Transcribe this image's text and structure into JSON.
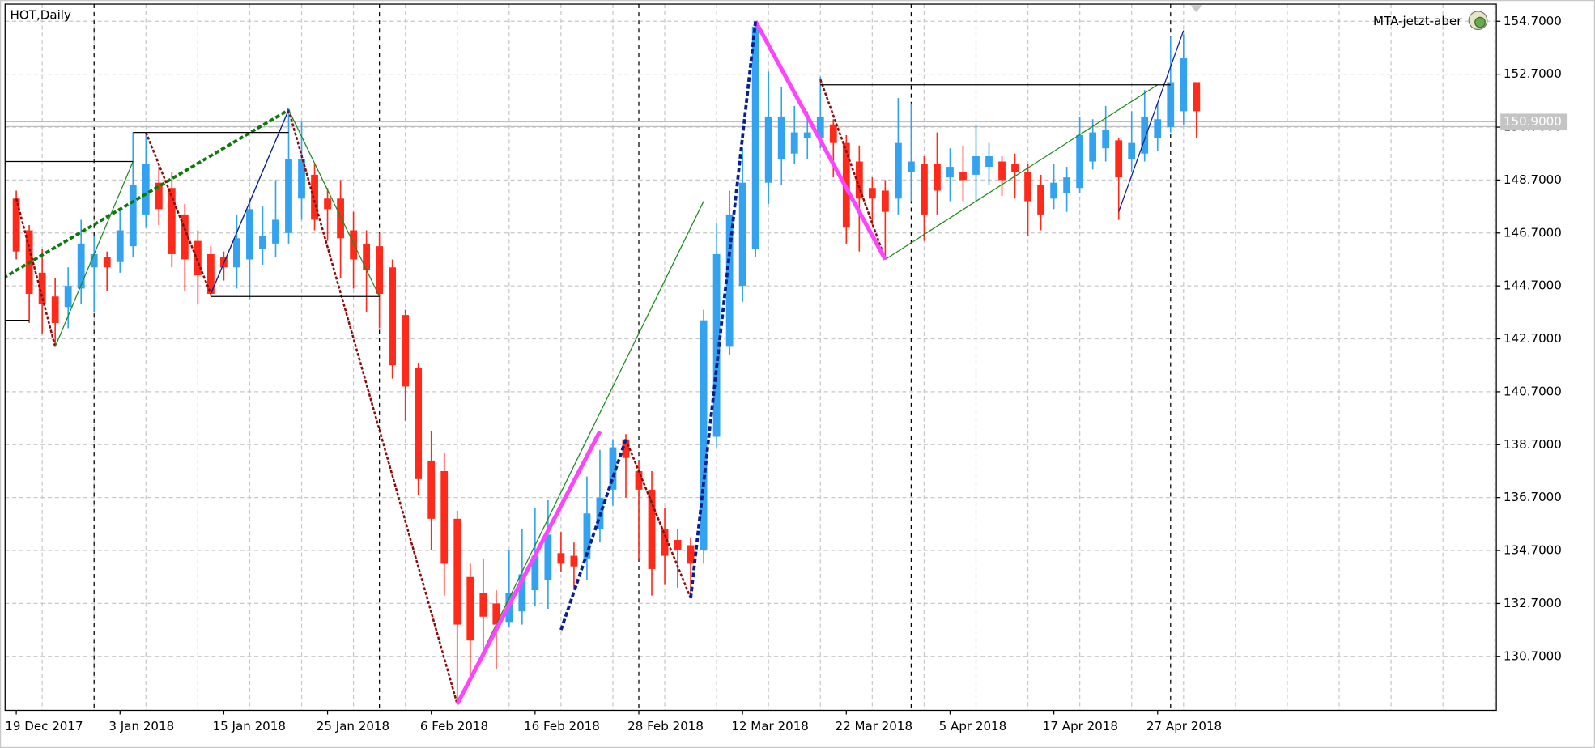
{
  "chart_data": {
    "type": "candlestick",
    "title": "HOT,Daily",
    "indicator_label": "MTA-jetzt-aber",
    "categories": [
      "19 Dec 2017",
      null,
      null,
      null,
      null,
      null,
      null,
      null,
      "3 Jan 2018",
      null,
      null,
      null,
      null,
      null,
      null,
      null,
      "15 Jan 2018",
      null,
      null,
      null,
      null,
      null,
      null,
      null,
      "25 Jan 2018",
      null,
      null,
      null,
      null,
      null,
      null,
      null,
      "6 Feb 2018",
      null,
      null,
      null,
      null,
      null,
      null,
      null,
      "16 Feb 2018",
      null,
      null,
      null,
      null,
      null,
      null,
      null,
      "28 Feb 2018",
      null,
      null,
      null,
      null,
      null,
      null,
      null,
      "12 Mar 2018",
      null,
      null,
      null,
      null,
      null,
      null,
      null,
      "22 Mar 2018",
      null,
      null,
      null,
      null,
      null,
      null,
      null,
      "5 Apr 2018",
      null,
      null,
      null,
      null,
      null,
      null,
      null,
      "17 Apr 2018",
      null,
      null,
      null,
      null,
      null,
      null,
      null,
      "27 Apr 2018",
      null,
      null,
      null
    ],
    "open": [
      148.0,
      146.8,
      145.2,
      144.3,
      143.9,
      144.6,
      145.4,
      145.8,
      145.6,
      146.2,
      147.4,
      148.6,
      148.4,
      147.4,
      146.4,
      145.9,
      145.8,
      145.4,
      145.7,
      146.1,
      146.3,
      146.7,
      148.0,
      148.9,
      148.0,
      148.0,
      146.8,
      146.3,
      146.2,
      145.4,
      143.6,
      141.6,
      138.1,
      137.7,
      135.9,
      133.7,
      133.1,
      132.7,
      132.0,
      132.4,
      133.2,
      133.6,
      134.6,
      134.5,
      134.4,
      135.5,
      137.0,
      138.9,
      137.7,
      137.0,
      135.5,
      135.1,
      134.9,
      134.7,
      139.0,
      142.4,
      144.7,
      146.1,
      148.6,
      149.5,
      149.7,
      150.3,
      150.3,
      150.8,
      150.1,
      149.4,
      148.4,
      148.3,
      148.0,
      149.0,
      149.3,
      149.3,
      148.8,
      149.0,
      148.9,
      149.2,
      149.4,
      149.3,
      149.0,
      148.5,
      148.0,
      148.2,
      148.4,
      149.4,
      149.9,
      150.2,
      149.5,
      149.7,
      150.3,
      150.7,
      151.3,
      152.4
    ],
    "high": [
      148.3,
      147.0,
      146.1,
      145.0,
      145.4,
      147.2,
      146.6,
      146.0,
      147.6,
      150.5,
      150.5,
      149.2,
      149.0,
      147.8,
      146.8,
      146.2,
      146.0,
      147.4,
      148.0,
      147.7,
      148.7,
      151.4,
      150.9,
      149.3,
      148.4,
      148.7,
      147.5,
      146.8,
      146.7,
      145.7,
      143.8,
      141.8,
      139.2,
      138.4,
      136.2,
      134.2,
      134.4,
      133.2,
      134.7,
      135.5,
      136.3,
      136.6,
      135.4,
      135.0,
      137.5,
      138.5,
      138.9,
      139.1,
      138.1,
      137.7,
      136.3,
      135.5,
      135.2,
      143.8,
      147.1,
      148.3,
      149.9,
      154.7,
      152.8,
      152.2,
      151.5,
      151.3,
      152.6,
      151.0,
      150.4,
      150.0,
      148.8,
      148.7,
      151.8,
      151.6,
      149.6,
      150.5,
      149.9,
      150.0,
      150.8,
      150.1,
      149.6,
      149.7,
      149.3,
      148.9,
      149.3,
      149.2,
      151.1,
      151.0,
      151.5,
      150.3,
      151.3,
      152.1,
      151.6,
      154.1,
      154.2,
      152.4
    ],
    "low": [
      145.7,
      143.3,
      142.9,
      142.4,
      143.1,
      144.0,
      143.7,
      144.5,
      145.2,
      145.8,
      146.9,
      147.0,
      145.4,
      144.5,
      144.0,
      144.3,
      144.9,
      144.6,
      144.2,
      145.5,
      145.8,
      146.3,
      147.2,
      146.8,
      146.4,
      145.0,
      144.6,
      143.7,
      143.1,
      141.2,
      139.6,
      136.8,
      134.7,
      133.0,
      128.9,
      130.0,
      131.0,
      130.2,
      131.8,
      131.9,
      132.6,
      132.5,
      133.9,
      133.3,
      133.6,
      135.0,
      136.4,
      136.7,
      134.4,
      133.0,
      133.4,
      133.3,
      132.9,
      134.2,
      138.6,
      142.1,
      144.1,
      145.8,
      147.8,
      148.5,
      149.3,
      149.5,
      149.9,
      148.8,
      146.3,
      146.0,
      147.0,
      145.7,
      147.4,
      147.9,
      146.4,
      147.4,
      147.9,
      147.9,
      147.9,
      148.5,
      148.1,
      148.0,
      146.6,
      146.8,
      147.6,
      147.5,
      148.2,
      149.1,
      149.4,
      147.2,
      149.0,
      149.4,
      149.8,
      150.5,
      150.8,
      150.3
    ],
    "close": [
      146.0,
      144.4,
      144.0,
      143.3,
      144.7,
      146.3,
      145.9,
      145.4,
      146.8,
      148.5,
      149.3,
      147.6,
      145.9,
      145.7,
      145.1,
      144.4,
      145.4,
      146.5,
      147.6,
      146.6,
      147.2,
      149.5,
      149.5,
      147.2,
      147.6,
      146.5,
      145.7,
      145.3,
      144.4,
      141.7,
      140.9,
      137.4,
      135.9,
      134.2,
      131.9,
      131.3,
      132.2,
      131.9,
      133.1,
      133.8,
      134.5,
      135.3,
      134.2,
      134.1,
      136.1,
      136.7,
      138.6,
      138.2,
      137.0,
      134.0,
      134.5,
      134.7,
      134.2,
      143.4,
      145.9,
      147.4,
      148.6,
      154.5,
      151.1,
      151.1,
      150.5,
      150.5,
      151.1,
      150.1,
      146.9,
      148.0,
      148.0,
      147.5,
      150.1,
      149.4,
      147.4,
      148.3,
      149.2,
      148.7,
      149.6,
      149.6,
      148.7,
      149.0,
      147.9,
      147.4,
      148.6,
      148.8,
      150.4,
      150.5,
      150.6,
      148.8,
      150.1,
      151.1,
      151.0,
      152.4,
      153.3,
      151.3
    ],
    "up_color": "#33a3f0",
    "down_color": "#ff2a1a",
    "ylim": [
      128.66,
      155.35
    ],
    "yticks": [
      {
        "value": 130.7,
        "label": "130.7000"
      },
      {
        "value": 132.7,
        "label": "132.7000"
      },
      {
        "value": 134.7,
        "label": "134.7000"
      },
      {
        "value": 136.7,
        "label": "136.7000"
      },
      {
        "value": 138.7,
        "label": "138.7000"
      },
      {
        "value": 140.7,
        "label": "140.7000"
      },
      {
        "value": 142.7,
        "label": "142.7000"
      },
      {
        "value": 144.7,
        "label": "144.7000"
      },
      {
        "value": 146.7,
        "label": "146.7000"
      },
      {
        "value": 148.7,
        "label": "148.7000"
      },
      {
        "value": 150.7,
        "label": "150.7000"
      },
      {
        "value": 152.7,
        "label": "152.7000"
      },
      {
        "value": 154.7,
        "label": "154.7000"
      }
    ],
    "grid": true,
    "current_price": {
      "value": 150.9,
      "label": "150.9000"
    },
    "ask_line": 150.72,
    "separators": [
      6,
      28,
      48,
      69,
      89
    ],
    "overlays": [
      {
        "color": "#0b7a0b",
        "width": 3,
        "dash": true,
        "x": [
          -1,
          21
        ],
        "values": [
          145.0,
          151.35
        ]
      },
      {
        "color": "#8b0a0a",
        "width": 2,
        "dash": true,
        "x": [
          0,
          3,
          null,
          10,
          15,
          null,
          21,
          34,
          null,
          47,
          52,
          null,
          62,
          67
        ],
        "values": [
          148.0,
          142.4,
          null,
          150.5,
          144.4,
          null,
          151.35,
          128.9,
          null,
          138.9,
          132.9,
          null,
          152.5,
          145.7
        ]
      },
      {
        "color": "#1d8a1d",
        "width": 1,
        "dash": false,
        "x": [
          3,
          9,
          null,
          15,
          21,
          28,
          null,
          34,
          53,
          null,
          67,
          88
        ],
        "values": [
          142.4,
          149.4,
          null,
          144.4,
          151.35,
          144.3,
          null,
          128.9,
          147.9,
          null,
          145.7,
          152.3
        ]
      },
      {
        "color": "#ff44ff",
        "width": 4,
        "dash": false,
        "x": [
          34,
          45,
          null,
          57,
          67
        ],
        "values": [
          128.9,
          139.2,
          null,
          154.7,
          145.7
        ]
      },
      {
        "color": "#0a1f8f",
        "width": 3,
        "dash": true,
        "x": [
          42,
          47,
          null,
          52,
          57
        ],
        "values": [
          131.7,
          138.9,
          null,
          132.9,
          154.7
        ]
      },
      {
        "color": "#0a1a9a",
        "width": 1,
        "dash": false,
        "x": [
          15,
          21,
          null,
          85,
          90
        ],
        "values": [
          144.4,
          151.35,
          null,
          147.5,
          154.35
        ]
      },
      {
        "color": "#000000",
        "width": 1,
        "dash": false,
        "x": [
          -1,
          9,
          null,
          9,
          21,
          null,
          15,
          28,
          null,
          62,
          89,
          null,
          -1,
          1
        ],
        "values": [
          149.4,
          149.4,
          null,
          150.5,
          150.5,
          null,
          144.3,
          144.3,
          null,
          152.3,
          152.3,
          null,
          143.4,
          143.4
        ]
      }
    ]
  }
}
